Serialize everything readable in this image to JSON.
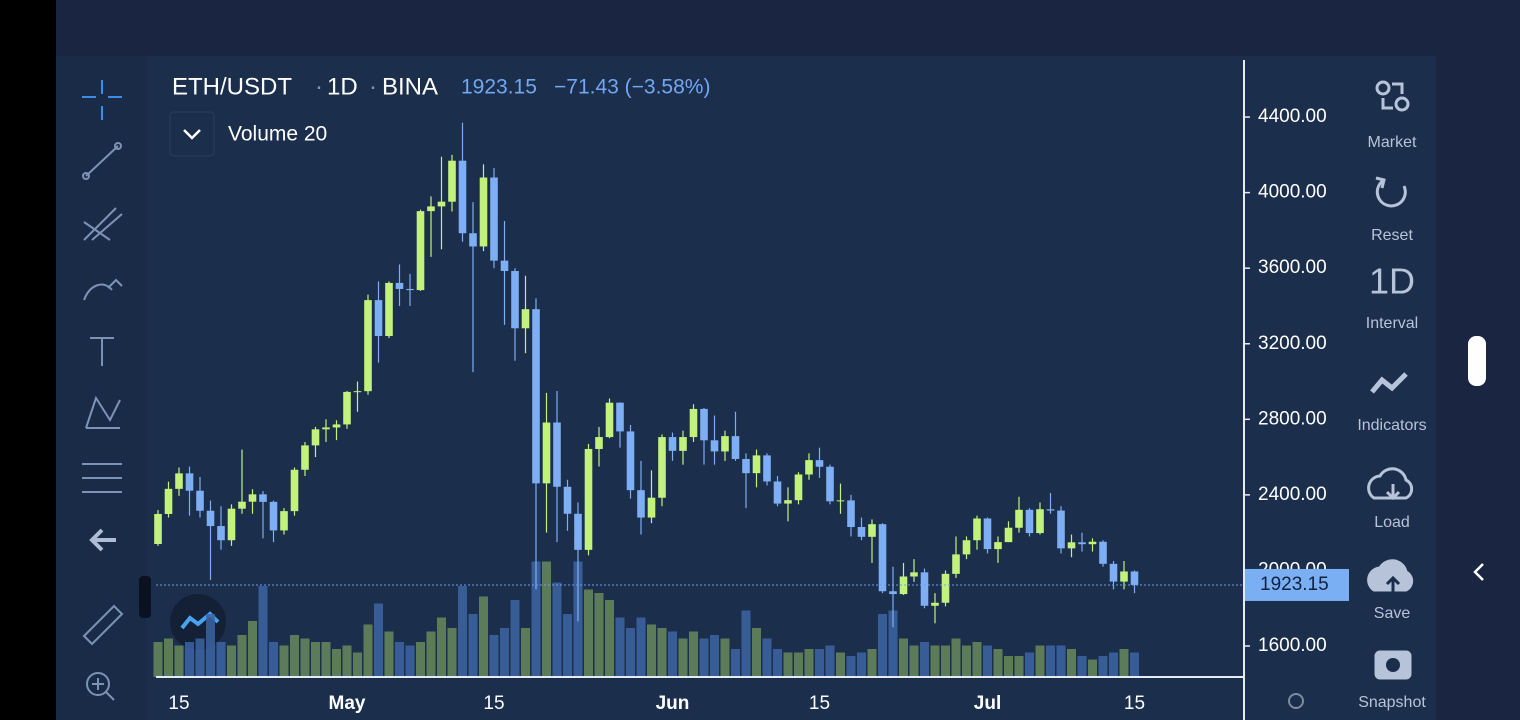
{
  "header": {
    "symbol": "ETH/USDT",
    "interval": "1D",
    "exchange": "BINA",
    "price": "1923.15",
    "change": "−71.43 (−3.58%)",
    "indicator": "Volume 20"
  },
  "toolbar": {
    "market": "Market",
    "reset": "Reset",
    "interval_value": "1D",
    "interval": "Interval",
    "indicators": "Indicators",
    "load": "Load",
    "save": "Save",
    "snapshot": "Snapshot"
  },
  "chart_data": {
    "type": "candlestick",
    "categories": [
      null,
      null,
      "15",
      null,
      null,
      null,
      null,
      null,
      null,
      null,
      null,
      null,
      null,
      null,
      null,
      null,
      null,
      null,
      "May",
      null,
      null,
      null,
      null,
      null,
      null,
      null,
      null,
      null,
      null,
      null,
      null,
      null,
      "15",
      null,
      null,
      null,
      null,
      null,
      null,
      null,
      null,
      null,
      null,
      null,
      null,
      null,
      null,
      null,
      null,
      "Jun",
      null,
      null,
      null,
      null,
      null,
      null,
      null,
      null,
      null,
      null,
      null,
      null,
      null,
      "15",
      null,
      null,
      null,
      null,
      null,
      null,
      null,
      null,
      null,
      null,
      null,
      null,
      null,
      null,
      null,
      "Jul",
      null,
      null,
      null,
      null,
      null,
      null,
      null,
      null,
      null,
      null,
      null,
      null,
      null,
      "15"
    ],
    "open": [
      2140,
      2299,
      2432,
      2514,
      2422,
      2316,
      2235,
      2160,
      2327,
      2364,
      2403,
      2363,
      2212,
      2314,
      2533,
      2662,
      2747,
      2757,
      2773,
      2945,
      2949,
      3431,
      3241,
      3522,
      3490,
      3484,
      3902,
      3927,
      3952,
      4169,
      3785,
      3715,
      4080,
      3640,
      3585,
      3282,
      3383,
      2461,
      2783,
      2443,
      2300,
      2109,
      2643,
      2706,
      2888,
      2736,
      2425,
      2280,
      2385,
      2706,
      2633,
      2706,
      2855,
      2689,
      2630,
      2711,
      2590,
      2515,
      2609,
      2471,
      2354,
      2372,
      2508,
      2584,
      2549,
      2366,
      2371,
      2230,
      2178,
      2245,
      1890,
      1875,
      1968,
      1990,
      1813,
      1829,
      1982,
      2085,
      2160,
      2275,
      2113,
      2150,
      2226,
      2321,
      2198,
      2324,
      2317,
      2117,
      2149,
      2139,
      2152,
      2035,
      1941,
      1994.58
    ],
    "high": [
      2320,
      2470,
      2545,
      2550,
      2495,
      2370,
      2340,
      2350,
      2640,
      2430,
      2420,
      2370,
      2330,
      2545,
      2680,
      2760,
      2800,
      2795,
      2950,
      3000,
      3460,
      3530,
      3530,
      3620,
      3570,
      3910,
      3980,
      4190,
      4200,
      4370,
      3950,
      4150,
      4130,
      3850,
      3600,
      3560,
      3440,
      2940,
      2950,
      2480,
      2360,
      2670,
      2760,
      2910,
      2890,
      2770,
      2580,
      2530,
      2720,
      2730,
      2740,
      2880,
      2860,
      2820,
      2740,
      2840,
      2620,
      2640,
      2620,
      2500,
      2440,
      2520,
      2620,
      2650,
      2560,
      2460,
      2400,
      2280,
      2270,
      2250,
      2020,
      2040,
      2060,
      2010,
      1880,
      2000,
      2180,
      2180,
      2290,
      2280,
      2180,
      2260,
      2390,
      2330,
      2360,
      2410,
      2340,
      2190,
      2200,
      2170,
      2160,
      2050,
      2050,
      2000
    ],
    "low": [
      2130,
      2280,
      2395,
      2290,
      2280,
      1950,
      2110,
      2130,
      2300,
      2300,
      2170,
      2150,
      2190,
      2290,
      2500,
      2600,
      2680,
      2690,
      2750,
      2840,
      2930,
      3100,
      3230,
      3400,
      3400,
      3480,
      3660,
      3700,
      3900,
      3740,
      3050,
      3690,
      3600,
      3300,
      3110,
      3150,
      1900,
      2200,
      2150,
      2210,
      1730,
      2080,
      2550,
      2700,
      2650,
      2380,
      2190,
      2250,
      2340,
      2580,
      2560,
      2680,
      2560,
      2560,
      2580,
      2580,
      2330,
      2440,
      2450,
      2340,
      2260,
      2350,
      2480,
      2490,
      2350,
      2300,
      2180,
      2160,
      2040,
      1880,
      1700,
      1870,
      1940,
      1800,
      1720,
      1810,
      1960,
      2060,
      2110,
      2090,
      2040,
      2150,
      2200,
      2180,
      2190,
      2300,
      2090,
      2070,
      2100,
      2100,
      2020,
      1900,
      1900,
      1880
    ],
    "close": [
      2299,
      2432,
      2514,
      2422,
      2316,
      2235,
      2160,
      2327,
      2364,
      2403,
      2363,
      2212,
      2314,
      2533,
      2662,
      2747,
      2757,
      2773,
      2945,
      2949,
      3431,
      3241,
      3522,
      3490,
      3484,
      3902,
      3927,
      3952,
      4169,
      3785,
      3715,
      4080,
      3640,
      3585,
      3282,
      3383,
      2461,
      2783,
      2443,
      2300,
      2109,
      2643,
      2706,
      2888,
      2736,
      2425,
      2280,
      2385,
      2706,
      2633,
      2706,
      2855,
      2689,
      2630,
      2711,
      2590,
      2515,
      2609,
      2471,
      2354,
      2372,
      2508,
      2584,
      2549,
      2366,
      2371,
      2230,
      2178,
      2245,
      1890,
      1875,
      1968,
      1990,
      1813,
      1829,
      1982,
      2085,
      2160,
      2275,
      2113,
      2150,
      2226,
      2321,
      2198,
      2324,
      2317,
      2117,
      2149,
      2139,
      2152,
      2035,
      1941,
      1994.58,
      1923.15
    ],
    "volume": [
      1.0,
      1.1,
      0.9,
      1.0,
      1.1,
      1.8,
      1.0,
      0.9,
      1.2,
      1.6,
      2.6,
      1.0,
      0.9,
      1.2,
      1.1,
      1.0,
      1.0,
      0.8,
      0.9,
      0.7,
      1.5,
      2.1,
      1.3,
      1.0,
      0.9,
      1.0,
      1.3,
      1.7,
      1.4,
      2.6,
      1.8,
      2.3,
      1.2,
      1.4,
      2.2,
      1.4,
      3.3,
      3.3,
      2.7,
      1.8,
      3.3,
      2.5,
      2.4,
      2.2,
      1.7,
      1.4,
      1.7,
      1.5,
      1.4,
      1.3,
      1.1,
      1.3,
      1.1,
      1.2,
      1.1,
      0.8,
      1.9,
      1.4,
      1.1,
      0.8,
      0.7,
      0.7,
      0.8,
      0.8,
      0.9,
      0.7,
      0.6,
      0.7,
      0.8,
      1.8,
      1.9,
      1.1,
      0.9,
      1.0,
      0.9,
      0.9,
      1.1,
      0.9,
      1.0,
      0.9,
      0.8,
      0.6,
      0.6,
      0.7,
      0.9,
      0.9,
      0.9,
      0.8,
      0.6,
      0.5,
      0.6,
      0.7,
      0.8,
      0.7
    ],
    "ylim": [
      1436,
      4702
    ],
    "yticks": [
      {
        "value": 1600,
        "label": "1600.00"
      },
      {
        "value": 2000,
        "label": "2000.00"
      },
      {
        "value": 2400,
        "label": "2400.00"
      },
      {
        "value": 2800,
        "label": "2800.00"
      },
      {
        "value": 3200,
        "label": "3200.00"
      },
      {
        "value": 3600,
        "label": "3600.00"
      },
      {
        "value": 4000,
        "label": "4000.00"
      },
      {
        "value": 4400,
        "label": "4400.00"
      }
    ],
    "volume_lim": [
      0,
      4
    ],
    "up_color": "#c2f27c",
    "down_color": "#7eaef4",
    "volume_up_color": "#67885a",
    "volume_down_color": "#3c64a3"
  }
}
